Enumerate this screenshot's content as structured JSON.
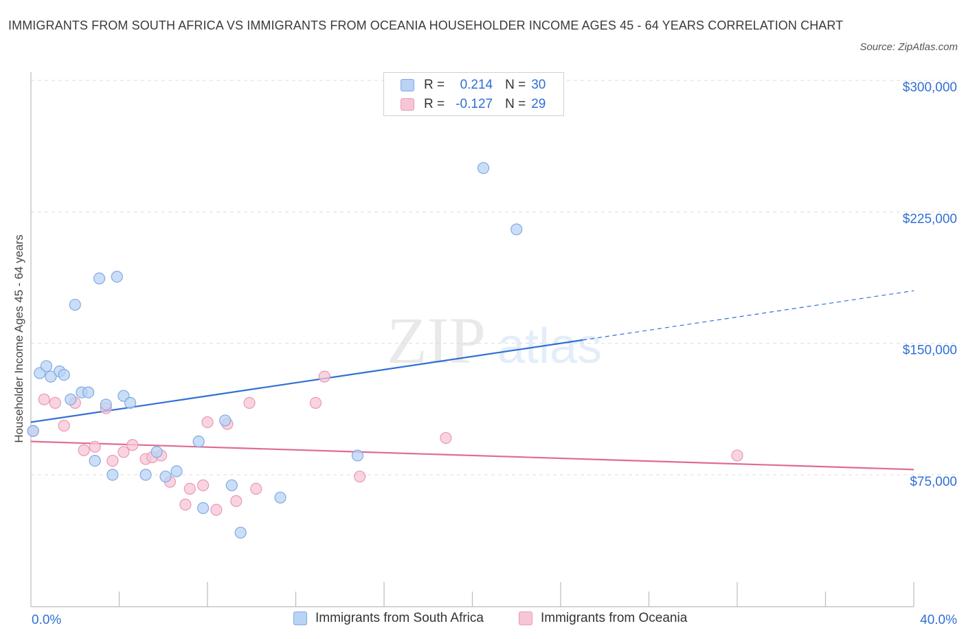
{
  "title": "IMMIGRANTS FROM SOUTH AFRICA VS IMMIGRANTS FROM OCEANIA HOUSEHOLDER INCOME AGES 45 - 64 YEARS CORRELATION CHART",
  "source": "Source: ZipAtlas.com",
  "watermark": {
    "zip": "ZIP",
    "atlas": "atlas"
  },
  "legend": {
    "r_label": "R =",
    "n_label": "N =",
    "rows": [
      {
        "r": "0.214",
        "n": "30"
      },
      {
        "r": "-0.127",
        "n": "29"
      }
    ]
  },
  "colors": {
    "south_africa_fill": "#b9d3f5",
    "south_africa_stroke": "#7ea9e3",
    "south_africa_line": "#2e6fd4",
    "oceania_fill": "#f7c6d6",
    "oceania_stroke": "#ea97b4",
    "oceania_line": "#e06a93",
    "axis_text": "#2e6fd4",
    "grid": "#dddddd"
  },
  "chart_data": {
    "type": "scatter",
    "title": "IMMIGRANTS FROM SOUTH AFRICA VS IMMIGRANTS FROM OCEANIA HOUSEHOLDER INCOME AGES 45 - 64 YEARS CORRELATION CHART",
    "xlabel": "",
    "ylabel": "Householder Income Ages 45 - 64 years",
    "xlim": [
      0,
      40
    ],
    "ylim": [
      0,
      300000
    ],
    "x_tick_labels": [
      "0.0%",
      "40.0%"
    ],
    "y_ticks": [
      75000,
      150000,
      225000,
      300000
    ],
    "y_tick_labels": [
      "$75,000",
      "$150,000",
      "$225,000",
      "$300,000"
    ],
    "grid": true,
    "legend_position": "bottom",
    "series": [
      {
        "name": "Immigrants from South Africa",
        "points": [
          [
            0.1,
            100000
          ],
          [
            0.4,
            133000
          ],
          [
            0.7,
            137000
          ],
          [
            0.9,
            131000
          ],
          [
            1.3,
            134000
          ],
          [
            1.5,
            132000
          ],
          [
            2.0,
            172000
          ],
          [
            1.8,
            118000
          ],
          [
            2.3,
            122000
          ],
          [
            2.6,
            122000
          ],
          [
            3.1,
            187000
          ],
          [
            2.9,
            83000
          ],
          [
            3.4,
            115000
          ],
          [
            3.7,
            75000
          ],
          [
            3.9,
            188000
          ],
          [
            4.2,
            120000
          ],
          [
            4.5,
            116000
          ],
          [
            5.2,
            75000
          ],
          [
            5.7,
            88000
          ],
          [
            6.1,
            74000
          ],
          [
            6.6,
            77000
          ],
          [
            7.6,
            94000
          ],
          [
            7.8,
            56000
          ],
          [
            8.8,
            106000
          ],
          [
            9.1,
            69000
          ],
          [
            9.5,
            42000
          ],
          [
            11.3,
            62000
          ],
          [
            14.8,
            86000
          ],
          [
            20.5,
            250000
          ],
          [
            22.0,
            215000
          ]
        ],
        "trend": {
          "x": [
            0,
            40
          ],
          "y": [
            105000,
            180000
          ],
          "solid_until_x": 25
        }
      },
      {
        "name": "Immigrants from Oceania",
        "points": [
          [
            0.1,
            100000
          ],
          [
            0.6,
            118000
          ],
          [
            1.1,
            116000
          ],
          [
            1.5,
            103000
          ],
          [
            2.0,
            116000
          ],
          [
            2.4,
            89000
          ],
          [
            2.9,
            91000
          ],
          [
            3.4,
            113000
          ],
          [
            3.7,
            83000
          ],
          [
            4.2,
            88000
          ],
          [
            4.6,
            92000
          ],
          [
            5.2,
            84000
          ],
          [
            5.5,
            85000
          ],
          [
            5.9,
            86000
          ],
          [
            6.3,
            71000
          ],
          [
            7.0,
            58000
          ],
          [
            7.2,
            67000
          ],
          [
            7.8,
            69000
          ],
          [
            8.0,
            105000
          ],
          [
            8.4,
            55000
          ],
          [
            8.9,
            104000
          ],
          [
            9.3,
            60000
          ],
          [
            9.9,
            116000
          ],
          [
            10.2,
            67000
          ],
          [
            12.9,
            116000
          ],
          [
            13.3,
            131000
          ],
          [
            14.9,
            74000
          ],
          [
            18.8,
            96000
          ],
          [
            32.0,
            86000
          ]
        ],
        "trend": {
          "x": [
            0,
            40
          ],
          "y": [
            94000,
            78000
          ]
        }
      }
    ]
  }
}
